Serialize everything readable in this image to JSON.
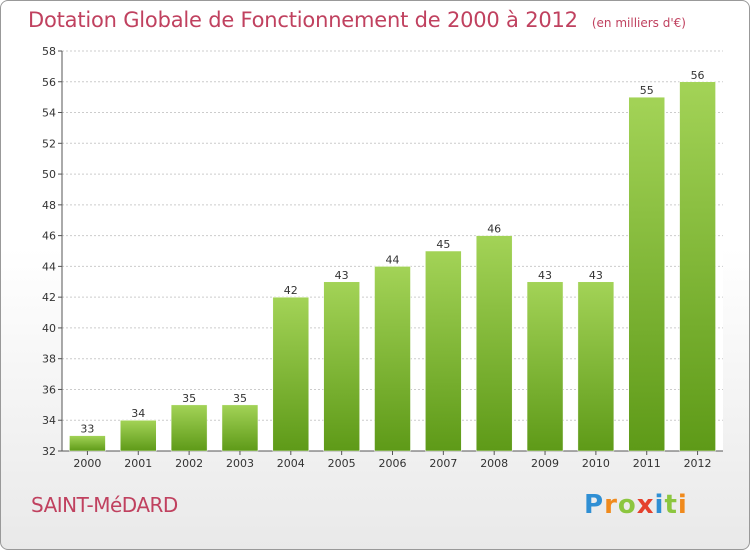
{
  "title": "Dotation Globale de Fonctionnement de 2000 à 2012",
  "unit": "(en milliers d'€)",
  "commune": "SAINT-MéDARD",
  "logo": {
    "letters": [
      "P",
      "r",
      "o",
      "x",
      "i",
      "t",
      "i"
    ],
    "colors": [
      "#2f8fd4",
      "#f08a1c",
      "#8cc63f",
      "#e5412d",
      "#2f8fd4",
      "#8cc63f",
      "#f08a1c"
    ]
  },
  "colors": {
    "title": "#c0415f",
    "bar_top": "#a3d357",
    "bar_bottom": "#5e9a18",
    "grid": "#cccccc"
  },
  "chart_data": {
    "type": "bar",
    "title": "Dotation Globale de Fonctionnement de 2000 à 2012",
    "subtitle": "(en milliers d'€)",
    "categories": [
      "2000",
      "2001",
      "2002",
      "2003",
      "2004",
      "2005",
      "2006",
      "2007",
      "2008",
      "2009",
      "2010",
      "2011",
      "2012"
    ],
    "values": [
      33,
      34,
      35,
      35,
      42,
      43,
      44,
      45,
      46,
      43,
      43,
      55,
      56
    ],
    "ylim": [
      32,
      58
    ],
    "yticks": [
      32,
      34,
      36,
      38,
      40,
      42,
      44,
      46,
      48,
      50,
      52,
      54,
      56,
      58
    ],
    "grid": true,
    "grid_axis": "y"
  }
}
